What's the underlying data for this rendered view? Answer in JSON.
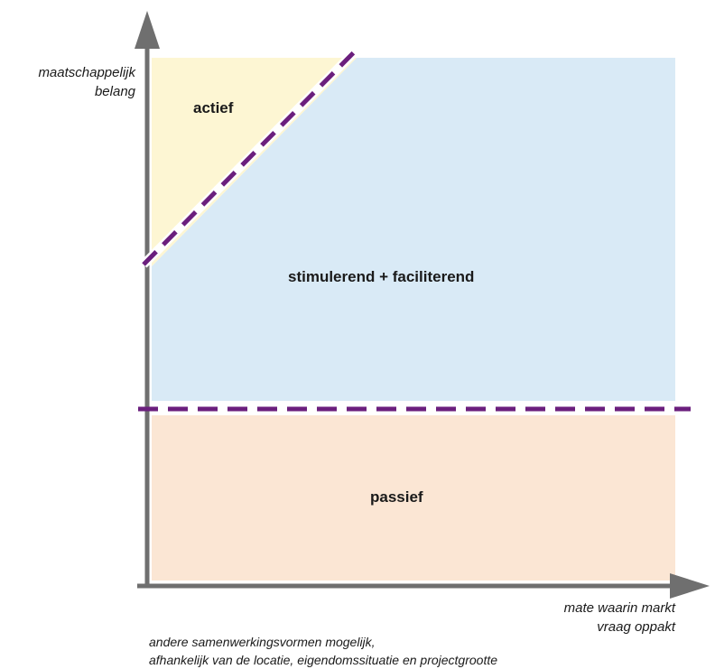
{
  "y_axis": {
    "line1": "maatschappelijk",
    "line2": "belang"
  },
  "x_axis": {
    "line1": "mate waarin markt",
    "line2": "vraag oppakt"
  },
  "zones": {
    "actief": "actief",
    "stimulerend": "stimulerend + faciliterend",
    "passief": "passief"
  },
  "note": {
    "line1": "andere samenwerkingsvormen mogelijk,",
    "line2": "afhankelijk van de locatie, eigendomssituatie en projectgrootte"
  },
  "colors": {
    "actief_fill": "#fdf6d3",
    "stimulerend_fill": "#d9eaf6",
    "passief_fill": "#fbe6d4",
    "axis": "#6f6f6f",
    "divider": "#6b1f7d"
  }
}
